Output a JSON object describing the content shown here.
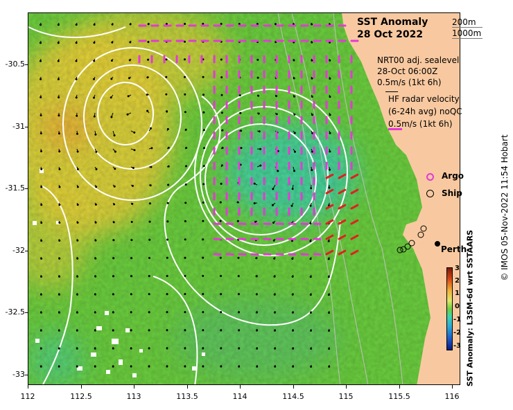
{
  "title": {
    "line1": "SST Anomaly",
    "line2": "28 Oct 2022"
  },
  "depth_legend": [
    "200m",
    "1000m"
  ],
  "sealevel": {
    "line1": "NRT00 adj. sealevel",
    "line2": "28-Oct 06:00Z",
    "line3": "0.5m/s (1kt 6h)"
  },
  "hf_radar": {
    "line1": "HF radar velocity",
    "line2": "(6-24h avg) noQC",
    "line3": "0.5m/s (1kt 6h)"
  },
  "legend": {
    "argo": "Argo",
    "ship": "Ship"
  },
  "place": "Perth",
  "colorbar": {
    "label": "SST Anomaly: L3SM-6d wrt SSTAARS",
    "ticks": [
      "3",
      "2",
      "1",
      "0",
      "-1",
      "-2",
      "-3"
    ]
  },
  "credit": "© IMOS 05-Nov-2022 11:54 Hobart",
  "axes": {
    "x_ticks": [
      "112",
      "112.5",
      "113",
      "113.5",
      "114",
      "114.5",
      "115",
      "115.5",
      "116"
    ],
    "y_ticks": [
      "-30.5",
      "-31",
      "-31.5",
      "-32",
      "-32.5",
      "-33"
    ],
    "x_range": [
      112,
      116
    ],
    "y_range": [
      -33.2,
      -30.2
    ]
  },
  "colors": {
    "land": "#f8c9a0",
    "sea_base": "#6ccf3f",
    "warm": "#e8d23a",
    "cool": "#3fd3b0",
    "radar": "#e33ad6",
    "radar_coastal": "#e02020",
    "contour": "#ffffff"
  }
}
